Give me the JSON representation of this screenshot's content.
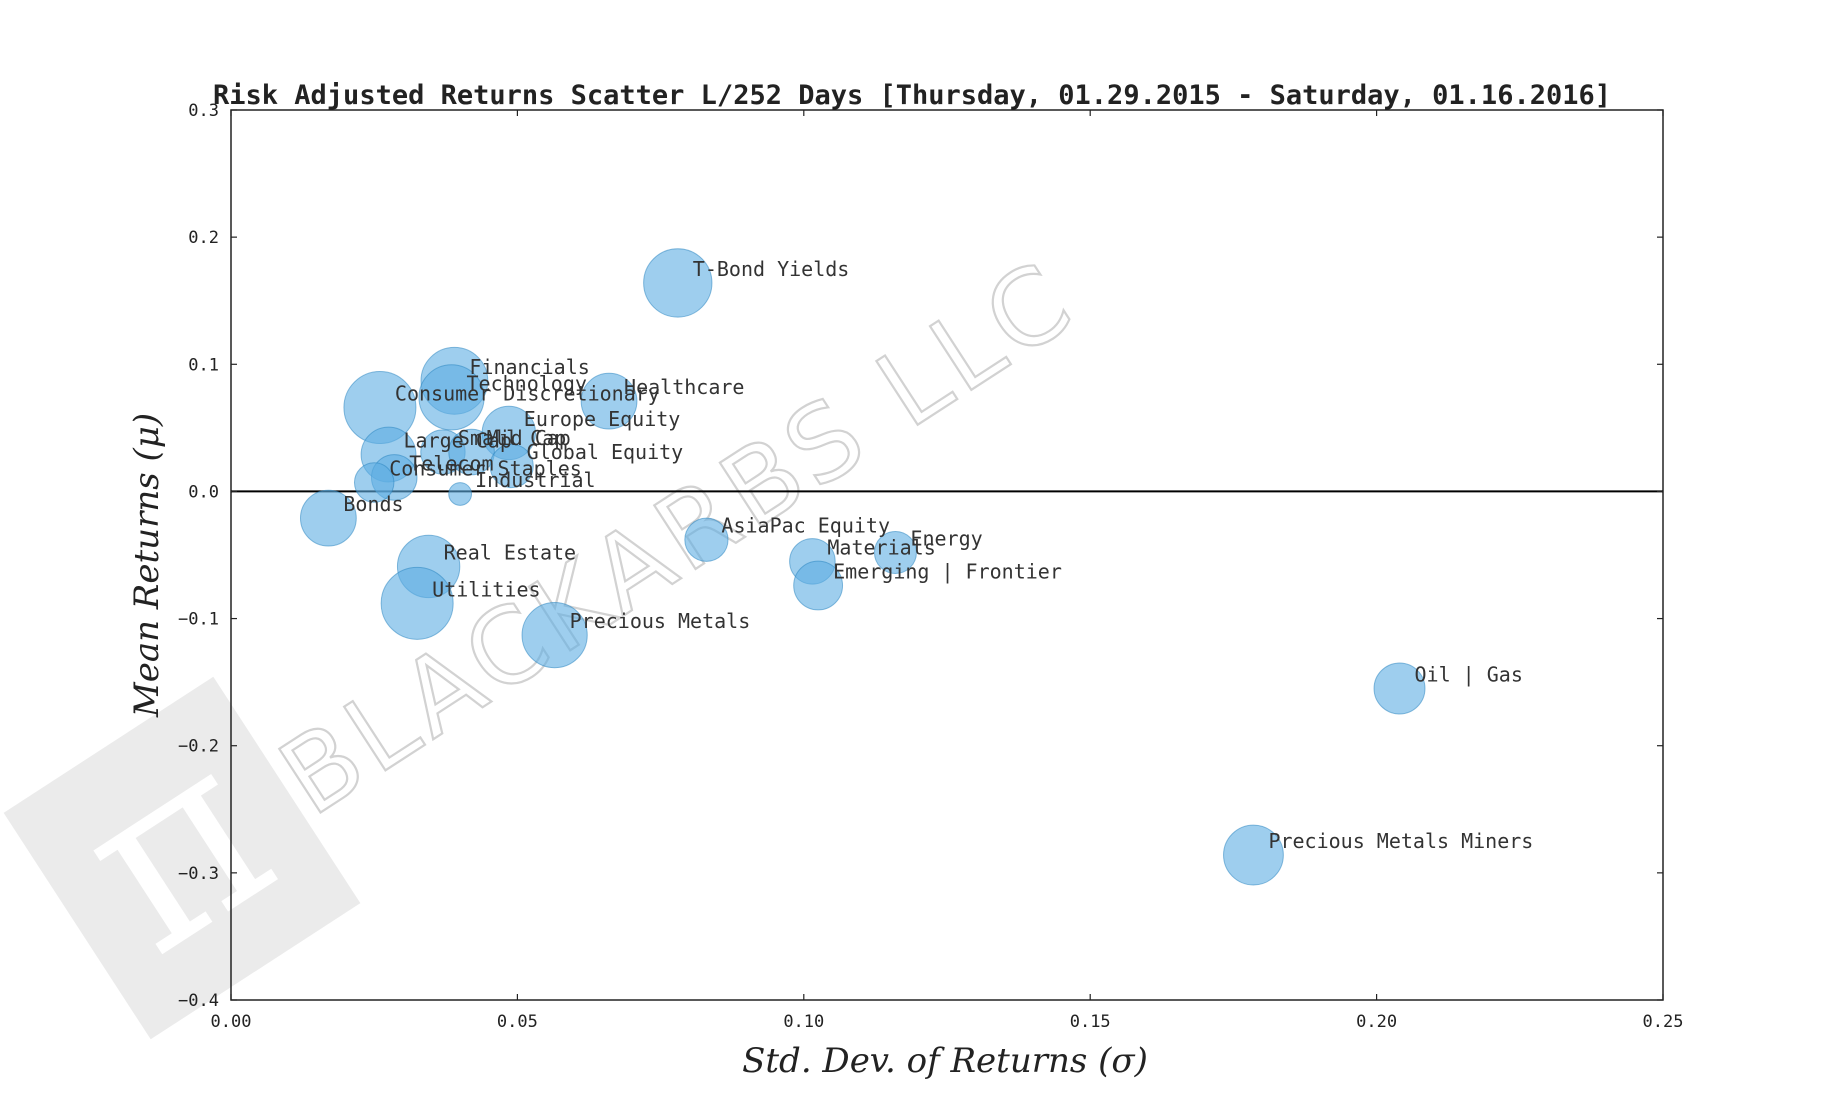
{
  "watermark": {
    "text": "BLACKARBS LLC",
    "logo_glyph": "π"
  },
  "colors": {
    "bubble_fill": "#5DADE2",
    "bubble_stroke": "#2E86C1",
    "axis": "#222222",
    "zero_line": "#000000",
    "watermark": "#d9d9d9"
  },
  "chart_data": {
    "type": "scatter",
    "title": "Risk Adjusted Returns Scatter L/252 Days [Thursday, 01.29.2015 - Saturday, 01.16.2016]",
    "xlabel": "Std. Dev. of Returns     (σ)",
    "ylabel": "Mean Returns     (μ)",
    "xlim": [
      0.0,
      0.25
    ],
    "ylim": [
      -0.4,
      0.3
    ],
    "x_ticks": [
      0.0,
      0.05,
      0.1,
      0.15,
      0.2,
      0.25
    ],
    "x_tick_labels": [
      "0.00",
      "0.05",
      "0.10",
      "0.15",
      "0.20",
      "0.25"
    ],
    "y_ticks": [
      0.3,
      0.2,
      0.1,
      0.0,
      -0.1,
      -0.2,
      -0.3,
      -0.4
    ],
    "y_tick_labels": [
      "0.3",
      "0.2",
      "0.1",
      "0.0",
      "−0.1",
      "−0.2",
      "−0.3",
      "−0.4"
    ],
    "zero_line": true,
    "grid": false,
    "points": [
      {
        "label": "T-Bond Yields",
        "x": 0.078,
        "y": 0.164,
        "size": 0.9
      },
      {
        "label": "Financials",
        "x": 0.039,
        "y": 0.087,
        "size": 0.86
      },
      {
        "label": "Technology",
        "x": 0.0385,
        "y": 0.074,
        "size": 0.82
      },
      {
        "label": "Consumer Discretionary",
        "x": 0.026,
        "y": 0.066,
        "size": 1.0
      },
      {
        "label": "Healthcare",
        "x": 0.066,
        "y": 0.071,
        "size": 0.6
      },
      {
        "label": "Europe Equity",
        "x": 0.0485,
        "y": 0.046,
        "size": 0.55
      },
      {
        "label": "Small Cap",
        "x": 0.037,
        "y": 0.031,
        "size": 0.38
      },
      {
        "label": "Mid Cap",
        "x": 0.042,
        "y": 0.031,
        "size": 0.4
      },
      {
        "label": "Global Equity",
        "x": 0.049,
        "y": 0.02,
        "size": 0.36
      },
      {
        "label": "Large Cap",
        "x": 0.0275,
        "y": 0.029,
        "size": 0.58
      },
      {
        "label": "Telecom",
        "x": 0.0285,
        "y": 0.011,
        "size": 0.4
      },
      {
        "label": "Consumer Staples",
        "x": 0.025,
        "y": 0.007,
        "size": 0.3
      },
      {
        "label": "Industrial",
        "x": 0.04,
        "y": -0.002,
        "size": 0.1
      },
      {
        "label": "Bonds",
        "x": 0.017,
        "y": -0.021,
        "size": 0.6
      },
      {
        "label": "AsiaPac Equity",
        "x": 0.083,
        "y": -0.038,
        "size": 0.36
      },
      {
        "label": "Energy",
        "x": 0.116,
        "y": -0.048,
        "size": 0.34
      },
      {
        "label": "Materials",
        "x": 0.1015,
        "y": -0.055,
        "size": 0.4
      },
      {
        "label": "Emerging | Frontier",
        "x": 0.1025,
        "y": -0.074,
        "size": 0.46
      },
      {
        "label": "Real Estate",
        "x": 0.0345,
        "y": -0.059,
        "size": 0.75
      },
      {
        "label": "Utilities",
        "x": 0.0325,
        "y": -0.088,
        "size": 1.0
      },
      {
        "label": "Precious Metals",
        "x": 0.0565,
        "y": -0.113,
        "size": 0.82
      },
      {
        "label": "Oil | Gas",
        "x": 0.204,
        "y": -0.155,
        "size": 0.5
      },
      {
        "label": "Precious Metals Miners",
        "x": 0.1785,
        "y": -0.286,
        "size": 0.69
      }
    ]
  }
}
